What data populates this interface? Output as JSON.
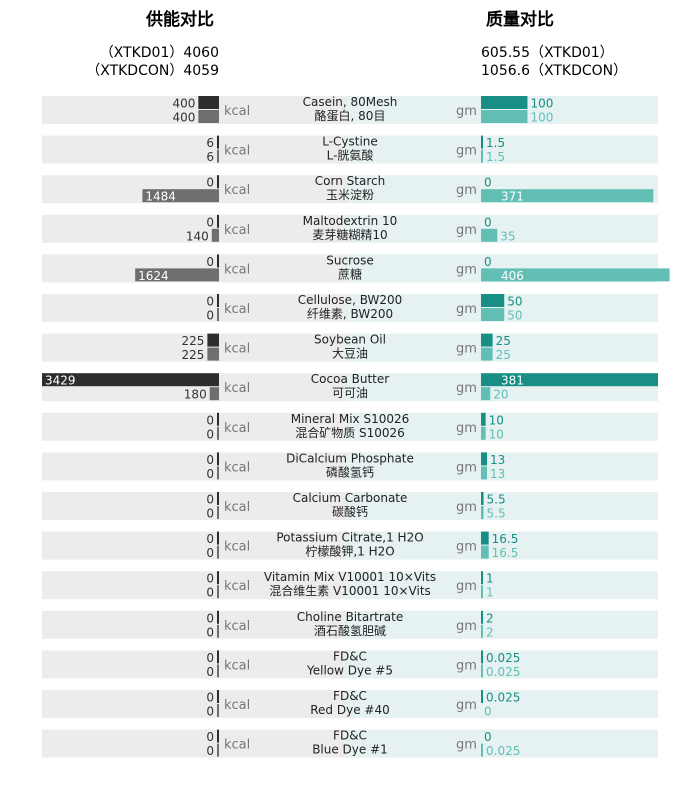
{
  "header": {
    "energy_title": "供能对比",
    "mass_title": "质量对比",
    "energy_totals": [
      "（XTKD01）4060",
      "（XTKDCON）4059"
    ],
    "mass_totals": [
      "605.55（XTKD01）",
      "1056.6（XTKDCON）"
    ],
    "energy_unit": "kcal",
    "mass_unit": "gm"
  },
  "colors": {
    "energy_primary": "#2d2d2d",
    "energy_secondary": "#6e6e6e",
    "mass_primary": "#178f84",
    "mass_secondary": "#62bfb5",
    "row_band_left": "#ececec",
    "row_band_right": "#e5f2f1",
    "title_left": "#222222",
    "title_right": "#1c9a8e"
  },
  "chart_data": {
    "type": "bar",
    "series_labels": [
      "XTKD01",
      "XTKDCON"
    ],
    "rows": [
      {
        "en": "Casein, 80Mesh",
        "cn": "酪蛋白, 80目",
        "kcal": [
          400,
          400
        ],
        "gm": [
          "100",
          "100"
        ]
      },
      {
        "en": "L-Cystine",
        "cn": "L-胱氨酸",
        "kcal": [
          6,
          6
        ],
        "gm": [
          "1.5",
          "1.5"
        ]
      },
      {
        "en": "Corn Starch",
        "cn": "玉米淀粉",
        "kcal": [
          0,
          1484
        ],
        "gm": [
          "0",
          "371"
        ]
      },
      {
        "en": "Maltodextrin 10",
        "cn": "麦芽糖糊精10",
        "kcal": [
          0,
          140
        ],
        "gm": [
          "0",
          "35"
        ]
      },
      {
        "en": "Sucrose",
        "cn": "蔗糖",
        "kcal": [
          0,
          1624
        ],
        "gm": [
          "0",
          "406"
        ]
      },
      {
        "en": "Cellulose, BW200",
        "cn": "纤维素, BW200",
        "kcal": [
          0,
          0
        ],
        "gm": [
          "50",
          "50"
        ]
      },
      {
        "en": "Soybean Oil",
        "cn": "大豆油",
        "kcal": [
          225,
          225
        ],
        "gm": [
          "25",
          "25"
        ]
      },
      {
        "en": "Cocoa Butter",
        "cn": "可可油",
        "kcal": [
          3429,
          180
        ],
        "gm": [
          "381",
          "20"
        ]
      },
      {
        "en": "Mineral Mix S10026",
        "cn": "混合矿物质 S10026",
        "kcal": [
          0,
          0
        ],
        "gm": [
          "10",
          "10"
        ]
      },
      {
        "en": "DiCalcium Phosphate",
        "cn": "磷酸氢钙",
        "kcal": [
          0,
          0
        ],
        "gm": [
          "13",
          "13"
        ]
      },
      {
        "en": "Calcium Carbonate",
        "cn": "碳酸钙",
        "kcal": [
          0,
          0
        ],
        "gm": [
          "5.5",
          "5.5"
        ]
      },
      {
        "en": "Potassium Citrate,1 H2O",
        "cn": "柠檬酸钾,1 H2O",
        "kcal": [
          0,
          0
        ],
        "gm": [
          "16.5",
          "16.5"
        ]
      },
      {
        "en": "Vitamin Mix V10001 10×Vits",
        "cn": "混合维生素 V10001  10×Vits",
        "kcal": [
          0,
          0
        ],
        "gm": [
          "1",
          "1"
        ]
      },
      {
        "en": "Choline Bitartrate",
        "cn": "酒石酸氢胆碱",
        "kcal": [
          0,
          0
        ],
        "gm": [
          "2",
          "2"
        ]
      },
      {
        "en": "FD&C",
        "cn": "Yellow Dye #5",
        "kcal": [
          0,
          0
        ],
        "gm": [
          "0.025",
          "0.025"
        ]
      },
      {
        "en": "FD&C",
        "cn": "Red Dye #40",
        "kcal": [
          0,
          0
        ],
        "gm": [
          "0.025",
          "0"
        ]
      },
      {
        "en": "FD&C",
        "cn": "Blue Dye #1",
        "kcal": [
          0,
          0
        ],
        "gm": [
          "0",
          "0.025"
        ]
      }
    ]
  }
}
